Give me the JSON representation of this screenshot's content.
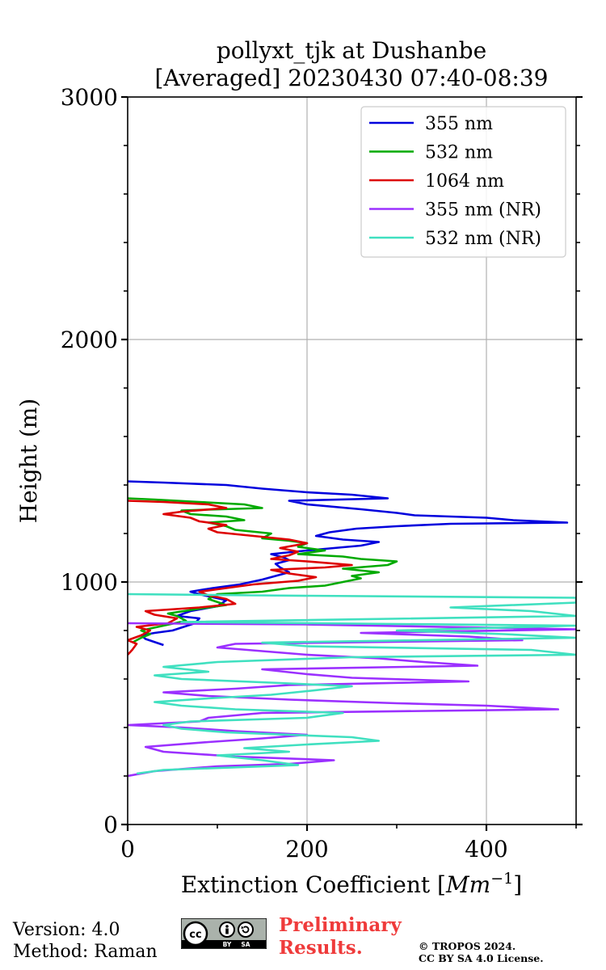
{
  "chart_data": {
    "type": "line",
    "title": "pollyxt_tjk at Dushanbe",
    "subtitle": "[Averaged] 20230430 07:40-08:39",
    "xlabel": "Extinction Coefficient [",
    "xlabel_unit": "Mm",
    "xlabel_exp": "−1",
    "xlabel_close": "]",
    "ylabel": "Height (m)",
    "xlim": [
      0,
      500
    ],
    "ylim": [
      0,
      3000
    ],
    "x_ticks": [
      0,
      200,
      400
    ],
    "x_tick_labels": [
      "0",
      "200",
      "400"
    ],
    "y_ticks": [
      0,
      1000,
      2000,
      3000
    ],
    "y_tick_labels": [
      "0",
      "1000",
      "2000",
      "3000"
    ],
    "y_minor_step": 200,
    "x_minor_step": 100,
    "grid": true,
    "legend_position": "top-right",
    "series": [
      {
        "name": "355 nm",
        "color": "#0000dd",
        "points": [
          [
            40,
            740
          ],
          [
            20,
            765
          ],
          [
            15,
            780
          ],
          [
            30,
            790
          ],
          [
            50,
            800
          ],
          [
            75,
            830
          ],
          [
            80,
            850
          ],
          [
            55,
            860
          ],
          [
            70,
            880
          ],
          [
            100,
            900
          ],
          [
            110,
            925
          ],
          [
            85,
            945
          ],
          [
            70,
            960
          ],
          [
            95,
            975
          ],
          [
            125,
            990
          ],
          [
            150,
            1010
          ],
          [
            165,
            1025
          ],
          [
            180,
            1040
          ],
          [
            170,
            1060
          ],
          [
            165,
            1075
          ],
          [
            180,
            1090
          ],
          [
            175,
            1100
          ],
          [
            160,
            1115
          ],
          [
            200,
            1130
          ],
          [
            230,
            1140
          ],
          [
            260,
            1150
          ],
          [
            280,
            1165
          ],
          [
            240,
            1175
          ],
          [
            210,
            1190
          ],
          [
            225,
            1205
          ],
          [
            255,
            1220
          ],
          [
            300,
            1230
          ],
          [
            360,
            1240
          ],
          [
            490,
            1245
          ],
          [
            430,
            1255
          ],
          [
            400,
            1265
          ],
          [
            320,
            1275
          ],
          [
            300,
            1285
          ],
          [
            260,
            1300
          ],
          [
            200,
            1320
          ],
          [
            180,
            1335
          ],
          [
            290,
            1345
          ],
          [
            250,
            1360
          ],
          [
            200,
            1370
          ],
          [
            150,
            1385
          ],
          [
            110,
            1400
          ],
          [
            40,
            1410
          ],
          [
            0,
            1415
          ]
        ]
      },
      {
        "name": "532 nm",
        "color": "#00aa00",
        "points": [
          [
            5,
            750
          ],
          [
            15,
            770
          ],
          [
            25,
            785
          ],
          [
            15,
            800
          ],
          [
            40,
            820
          ],
          [
            65,
            840
          ],
          [
            55,
            860
          ],
          [
            45,
            870
          ],
          [
            80,
            890
          ],
          [
            110,
            905
          ],
          [
            90,
            930
          ],
          [
            100,
            950
          ],
          [
            150,
            960
          ],
          [
            180,
            975
          ],
          [
            220,
            985
          ],
          [
            240,
            1000
          ],
          [
            260,
            1015
          ],
          [
            250,
            1025
          ],
          [
            280,
            1040
          ],
          [
            240,
            1055
          ],
          [
            290,
            1070
          ],
          [
            300,
            1085
          ],
          [
            260,
            1095
          ],
          [
            240,
            1105
          ],
          [
            190,
            1115
          ],
          [
            220,
            1130
          ],
          [
            190,
            1145
          ],
          [
            200,
            1160
          ],
          [
            180,
            1170
          ],
          [
            150,
            1180
          ],
          [
            160,
            1200
          ],
          [
            120,
            1215
          ],
          [
            110,
            1230
          ],
          [
            90,
            1245
          ],
          [
            130,
            1255
          ],
          [
            110,
            1270
          ],
          [
            70,
            1280
          ],
          [
            60,
            1295
          ],
          [
            150,
            1305
          ],
          [
            130,
            1320
          ],
          [
            80,
            1330
          ],
          [
            30,
            1340
          ],
          [
            0,
            1345
          ]
        ]
      },
      {
        "name": "1064 nm",
        "color": "#dd0000",
        "points": [
          [
            0,
            700
          ],
          [
            5,
            720
          ],
          [
            10,
            745
          ],
          [
            0,
            760
          ],
          [
            15,
            780
          ],
          [
            25,
            800
          ],
          [
            10,
            815
          ],
          [
            45,
            830
          ],
          [
            55,
            850
          ],
          [
            30,
            865
          ],
          [
            20,
            880
          ],
          [
            80,
            895
          ],
          [
            120,
            910
          ],
          [
            110,
            930
          ],
          [
            90,
            945
          ],
          [
            80,
            960
          ],
          [
            110,
            975
          ],
          [
            140,
            990
          ],
          [
            190,
            1005
          ],
          [
            210,
            1020
          ],
          [
            180,
            1035
          ],
          [
            160,
            1050
          ],
          [
            220,
            1060
          ],
          [
            250,
            1070
          ],
          [
            200,
            1085
          ],
          [
            160,
            1095
          ],
          [
            180,
            1110
          ],
          [
            190,
            1125
          ],
          [
            170,
            1140
          ],
          [
            200,
            1160
          ],
          [
            180,
            1175
          ],
          [
            140,
            1190
          ],
          [
            100,
            1205
          ],
          [
            90,
            1220
          ],
          [
            110,
            1235
          ],
          [
            80,
            1250
          ],
          [
            70,
            1265
          ],
          [
            40,
            1280
          ],
          [
            60,
            1290
          ],
          [
            110,
            1305
          ],
          [
            90,
            1320
          ],
          [
            40,
            1330
          ],
          [
            0,
            1335
          ]
        ]
      },
      {
        "name": "355 nm (NR)",
        "color": "#9b30ff",
        "points": [
          [
            0,
            200
          ],
          [
            30,
            220
          ],
          [
            100,
            240
          ],
          [
            180,
            250
          ],
          [
            230,
            265
          ],
          [
            120,
            280
          ],
          [
            40,
            300
          ],
          [
            20,
            320
          ],
          [
            90,
            340
          ],
          [
            150,
            355
          ],
          [
            200,
            370
          ],
          [
            120,
            385
          ],
          [
            60,
            400
          ],
          [
            0,
            410
          ],
          [
            80,
            425
          ],
          [
            90,
            440
          ],
          [
            150,
            460
          ],
          [
            480,
            475
          ],
          [
            400,
            490
          ],
          [
            300,
            500
          ],
          [
            180,
            515
          ],
          [
            90,
            530
          ],
          [
            40,
            545
          ],
          [
            120,
            560
          ],
          [
            180,
            575
          ],
          [
            380,
            590
          ],
          [
            250,
            605
          ],
          [
            200,
            620
          ],
          [
            150,
            640
          ],
          [
            390,
            655
          ],
          [
            330,
            670
          ],
          [
            280,
            685
          ],
          [
            200,
            700
          ],
          [
            150,
            715
          ],
          [
            100,
            730
          ],
          [
            120,
            745
          ],
          [
            440,
            760
          ],
          [
            380,
            775
          ],
          [
            260,
            790
          ],
          [
            500,
            805
          ],
          [
            350,
            815
          ],
          [
            200,
            825
          ],
          [
            0,
            830
          ]
        ]
      },
      {
        "name": "532 nm (NR)",
        "color": "#40e0c0",
        "points": [
          [
            10,
            210
          ],
          [
            40,
            225
          ],
          [
            190,
            245
          ],
          [
            150,
            265
          ],
          [
            100,
            285
          ],
          [
            180,
            300
          ],
          [
            130,
            315
          ],
          [
            200,
            330
          ],
          [
            280,
            345
          ],
          [
            250,
            360
          ],
          [
            110,
            380
          ],
          [
            60,
            395
          ],
          [
            40,
            410
          ],
          [
            70,
            425
          ],
          [
            200,
            440
          ],
          [
            240,
            460
          ],
          [
            120,
            475
          ],
          [
            60,
            490
          ],
          [
            30,
            505
          ],
          [
            90,
            520
          ],
          [
            160,
            535
          ],
          [
            200,
            550
          ],
          [
            250,
            570
          ],
          [
            160,
            585
          ],
          [
            60,
            600
          ],
          [
            30,
            615
          ],
          [
            90,
            630
          ],
          [
            40,
            650
          ],
          [
            100,
            670
          ],
          [
            250,
            690
          ],
          [
            500,
            700
          ],
          [
            450,
            720
          ],
          [
            200,
            735
          ],
          [
            150,
            750
          ],
          [
            500,
            770
          ],
          [
            420,
            785
          ],
          [
            300,
            800
          ],
          [
            500,
            820
          ],
          [
            60,
            835
          ],
          [
            500,
            860
          ],
          [
            450,
            880
          ],
          [
            360,
            895
          ],
          [
            500,
            915
          ],
          [
            500,
            935
          ],
          [
            140,
            945
          ],
          [
            0,
            950
          ]
        ]
      }
    ]
  },
  "footer": {
    "version": "Version: 4.0",
    "method": "Method: Raman",
    "preliminary_line1": "Preliminary",
    "preliminary_line2": "Results.",
    "copyright_line1": "© TROPOS 2024.",
    "copyright_line2": "CC BY SA 4.0 License."
  },
  "badge": {
    "cc": "cc",
    "by": "BY",
    "sa": "SA"
  }
}
